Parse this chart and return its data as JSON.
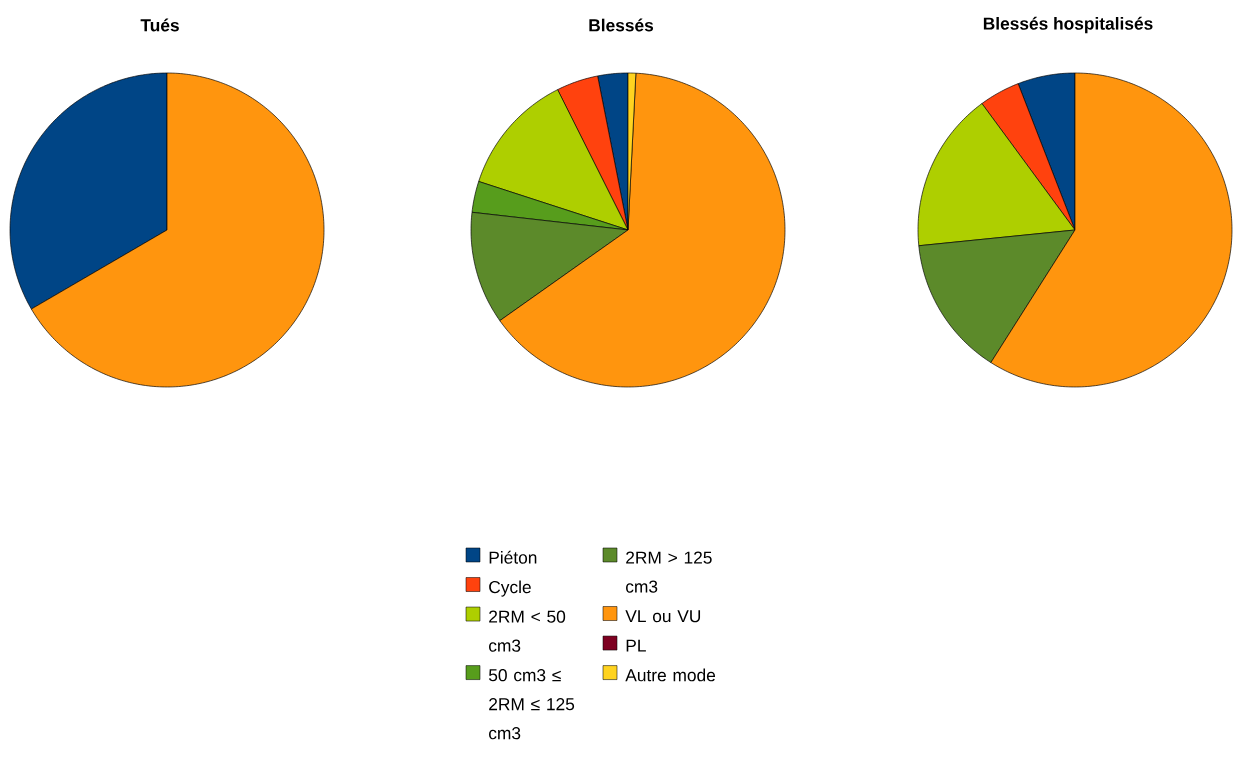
{
  "chart_data": [
    {
      "type": "pie",
      "title": "Tués",
      "categories": [
        null,
        null,
        null,
        null,
        null,
        null,
        null,
        null
      ],
      "values": [
        33.4,
        0,
        0,
        0,
        0,
        66.6,
        0,
        0
      ],
      "colors": [
        "#004586",
        "#ff420e",
        "#aecf00",
        "#579d1c",
        "#5c8a2a",
        "#ff950e",
        "#7e0021",
        "#ffd320"
      ]
    },
    {
      "type": "pie",
      "title": "Blessés",
      "categories": [
        "Piéton",
        "Cycle",
        "2RM < 50 cm3",
        "50 cm3 ≤ 2RM ≤ 125 cm3",
        "2RM > 125 cm3",
        "VL ou VU",
        "PL",
        "Autre mode"
      ],
      "values": [
        3.1,
        4.3,
        12.6,
        3.2,
        11.6,
        64.4,
        0,
        0.8
      ],
      "colors": [
        "#004586",
        "#ff420e",
        "#aecf00",
        "#579d1c",
        "#5c8a2a",
        "#ff950e",
        "#7e0021",
        "#ffd320"
      ],
      "legend": "bottom"
    },
    {
      "type": "pie",
      "title": "Blessés hospitalisés",
      "categories": [
        null,
        null,
        null,
        null,
        null,
        null,
        null,
        null
      ],
      "values": [
        5.9,
        4.2,
        16.5,
        0,
        14.4,
        59.0,
        0,
        0
      ],
      "colors": [
        "#004586",
        "#ff420e",
        "#aecf00",
        "#579d1c",
        "#5c8a2a",
        "#ff950e",
        "#7e0021",
        "#ffd320"
      ]
    }
  ]
}
